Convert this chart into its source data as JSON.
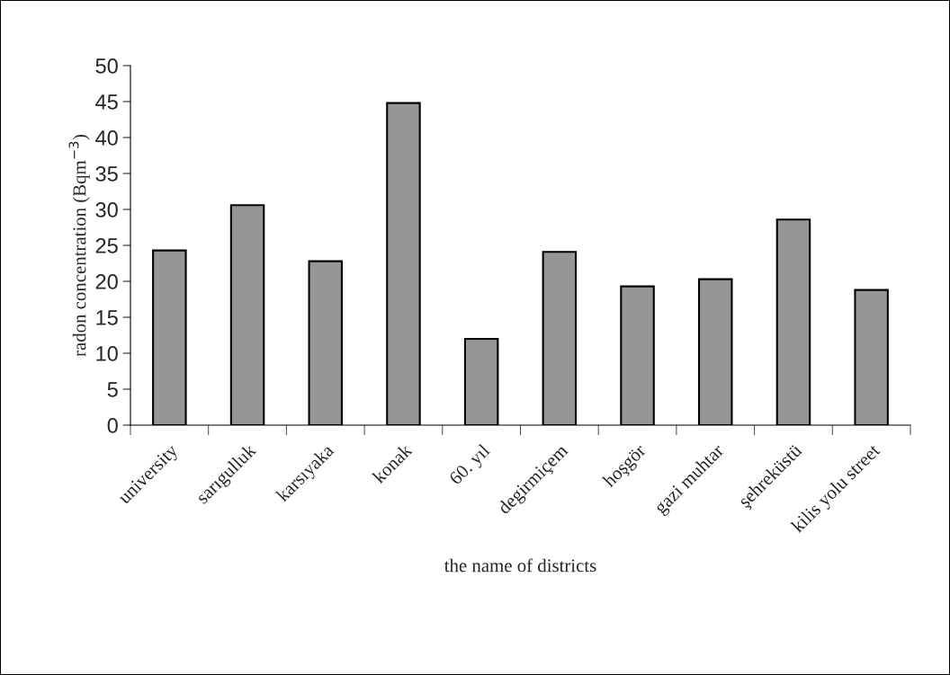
{
  "chart_data": {
    "type": "bar",
    "xlabel": "the name of districts",
    "ylabel": "radon concentration (Bqm$^{−3}$)",
    "categories": [
      "university",
      "sarıgulluk",
      "karsıyaka",
      "konak",
      "60. yıl",
      "degirmiçem",
      "hoşgör",
      "gazi muhtar",
      "şehreküstü",
      "kilis yolu street"
    ],
    "values": [
      24.3,
      30.6,
      22.8,
      44.8,
      12.0,
      24.1,
      19.3,
      20.3,
      28.6,
      18.8
    ],
    "color": "#969696",
    "ylim": [
      0,
      50
    ],
    "yticks": [
      0,
      5,
      10,
      15,
      20,
      25,
      30,
      35,
      40,
      45,
      50
    ],
    "grid": false,
    "legend": false
  }
}
